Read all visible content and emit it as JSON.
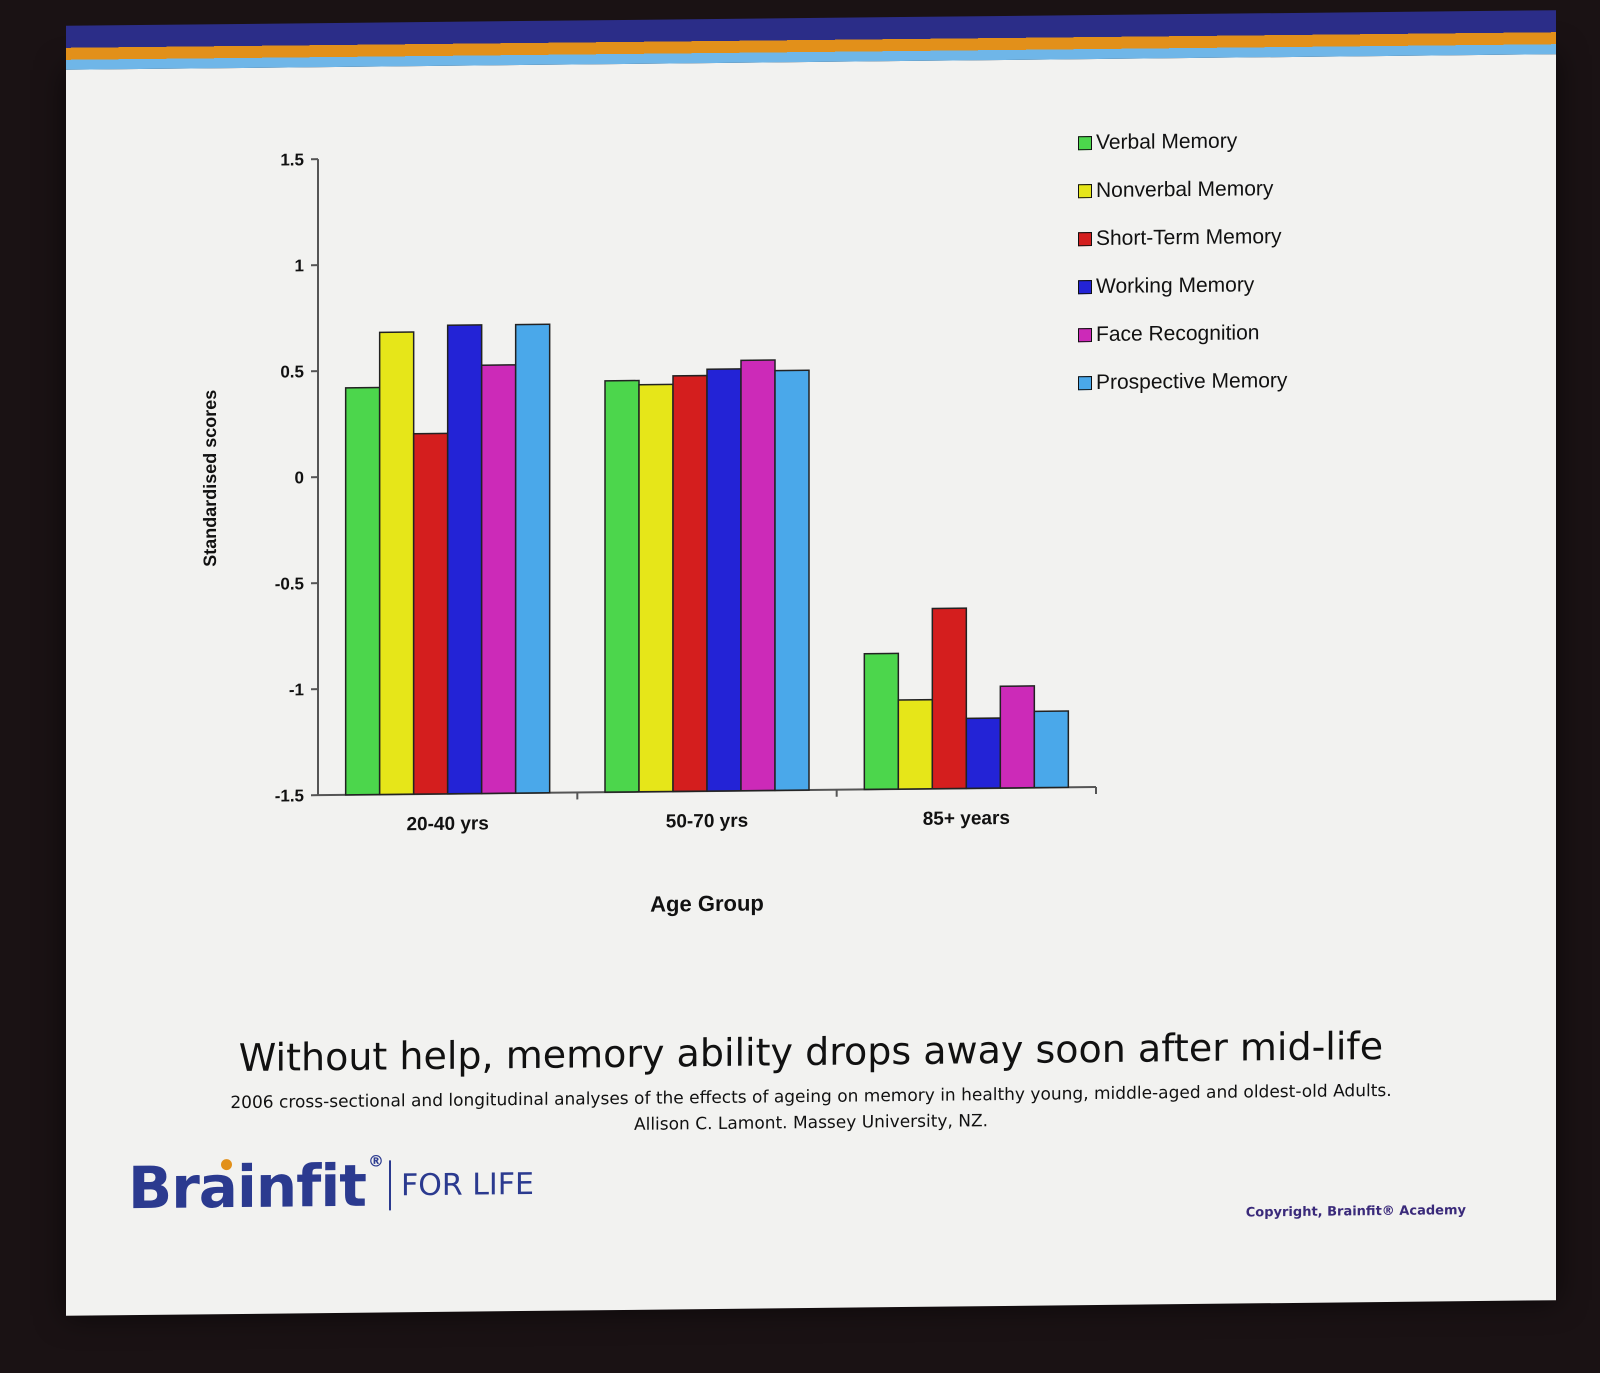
{
  "chart_data": {
    "type": "bar",
    "categories": [
      "20-40 yrs",
      "50-70 yrs",
      "85+ years"
    ],
    "series": [
      {
        "name": "Verbal Memory",
        "color": "#4cd64c",
        "values": [
          0.42,
          0.44,
          -0.86
        ]
      },
      {
        "name": "Nonverbal Memory",
        "color": "#e6e619",
        "values": [
          0.68,
          0.42,
          -1.08
        ]
      },
      {
        "name": "Short-Term Memory",
        "color": "#d41e1e",
        "values": [
          0.2,
          0.46,
          -0.65
        ]
      },
      {
        "name": "Working Memory",
        "color": "#2323d6",
        "values": [
          0.71,
          0.49,
          -1.17
        ]
      },
      {
        "name": "Face Recognition",
        "color": "#cc2ab8",
        "values": [
          0.52,
          0.53,
          -1.02
        ]
      },
      {
        "name": "Prospective Memory",
        "color": "#4aa8ea",
        "values": [
          0.71,
          0.48,
          -1.14
        ]
      }
    ],
    "xlabel": "Age Group",
    "ylabel": "Standardised scores",
    "ylim": [
      -1.5,
      1.5
    ],
    "yticks": [
      "1.5",
      "1",
      "0.5",
      "0",
      "-0.5",
      "-1",
      "-1.5"
    ],
    "yticks_values": [
      1.5,
      1,
      0.5,
      0,
      -0.5,
      -1,
      -1.5
    ],
    "grid": false,
    "legend_position": "top-right"
  },
  "slide": {
    "headline": "Without help, memory ability drops away soon after mid-life",
    "citation_line1": "2006 cross-sectional and longitudinal analyses of the effects of ageing on memory in healthy young, middle-aged  and oldest-old Adults.",
    "citation_line2": "Allison C. Lamont. Massey University, NZ.",
    "logo_word": "Brainfit",
    "logo_reg": "®",
    "logo_tagline": "FOR LIFE",
    "copyright": "Copyright, Brainfit® Academy",
    "brand_color": "#2b3a8f",
    "accent_color": "#e2901a"
  }
}
